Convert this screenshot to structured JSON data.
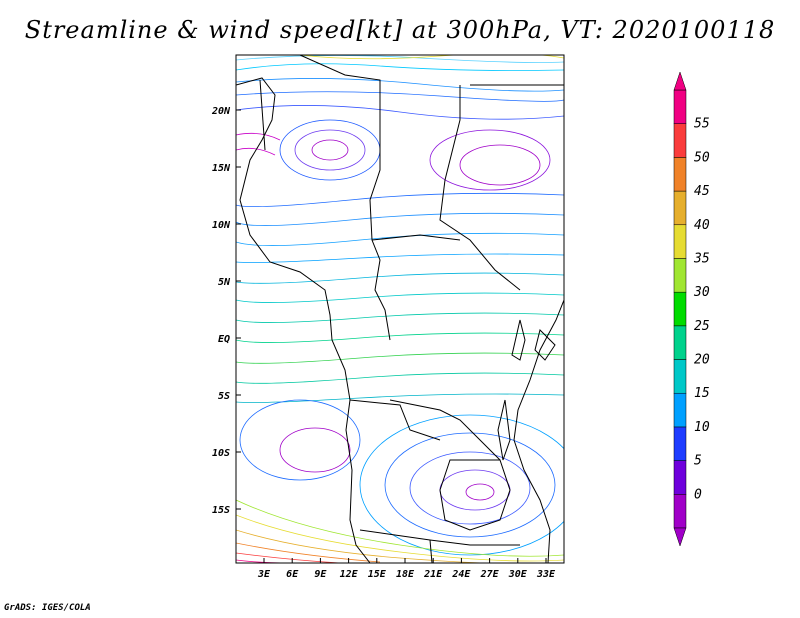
{
  "title": "Streamline & wind speed[kt] at 300hPa, VT: 2020100118",
  "footer": "GrADS: IGES/COLA",
  "lat_labels": [
    "20N",
    "15N",
    "10N",
    "5N",
    "EQ",
    "5S",
    "10S",
    "15S"
  ],
  "lon_labels": [
    "3E",
    "6E",
    "9E",
    "12E",
    "15E",
    "18E",
    "21E",
    "24E",
    "27E",
    "30E",
    "33E"
  ],
  "colorbar": {
    "levels": [
      "0",
      "5",
      "10",
      "15",
      "20",
      "25",
      "30",
      "35",
      "40",
      "45",
      "50",
      "55"
    ],
    "colors": [
      "#a000c8",
      "#6e00dc",
      "#1e3cff",
      "#00a0ff",
      "#00c8c8",
      "#00d28c",
      "#00dc00",
      "#a0e632",
      "#e6dc32",
      "#e6af2d",
      "#f08228",
      "#fa3c3c",
      "#f00082"
    ]
  }
}
